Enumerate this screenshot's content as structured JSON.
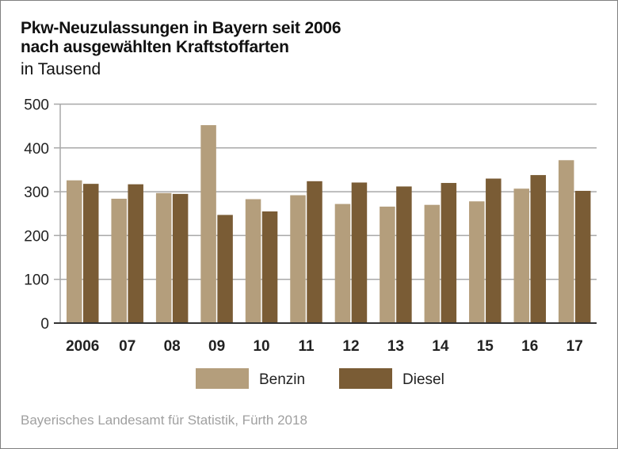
{
  "chart_data": {
    "type": "bar",
    "title": "Pkw-Neuzulassungen in Bayern seit 2006",
    "title_line2": "nach ausgewählten Kraftstoffarten",
    "subtitle": "in Tausend",
    "xlabel": "",
    "ylabel": "",
    "ylim": [
      0,
      500
    ],
    "yticks": [
      0,
      100,
      200,
      300,
      400,
      500
    ],
    "grid": true,
    "legend_position": "bottom-center",
    "categories": [
      "2006",
      "07",
      "08",
      "09",
      "10",
      "11",
      "12",
      "13",
      "14",
      "15",
      "16",
      "17"
    ],
    "series": [
      {
        "name": "Benzin",
        "color": "#b49e7c",
        "values": [
          326,
          284,
          297,
          452,
          283,
          292,
          272,
          266,
          270,
          278,
          307,
          372
        ]
      },
      {
        "name": "Diesel",
        "color": "#7a5c35",
        "values": [
          318,
          317,
          295,
          247,
          255,
          324,
          321,
          312,
          320,
          330,
          338,
          302
        ]
      }
    ],
    "source": "Bayerisches Landesamt für Statistik, Fürth 2018"
  }
}
